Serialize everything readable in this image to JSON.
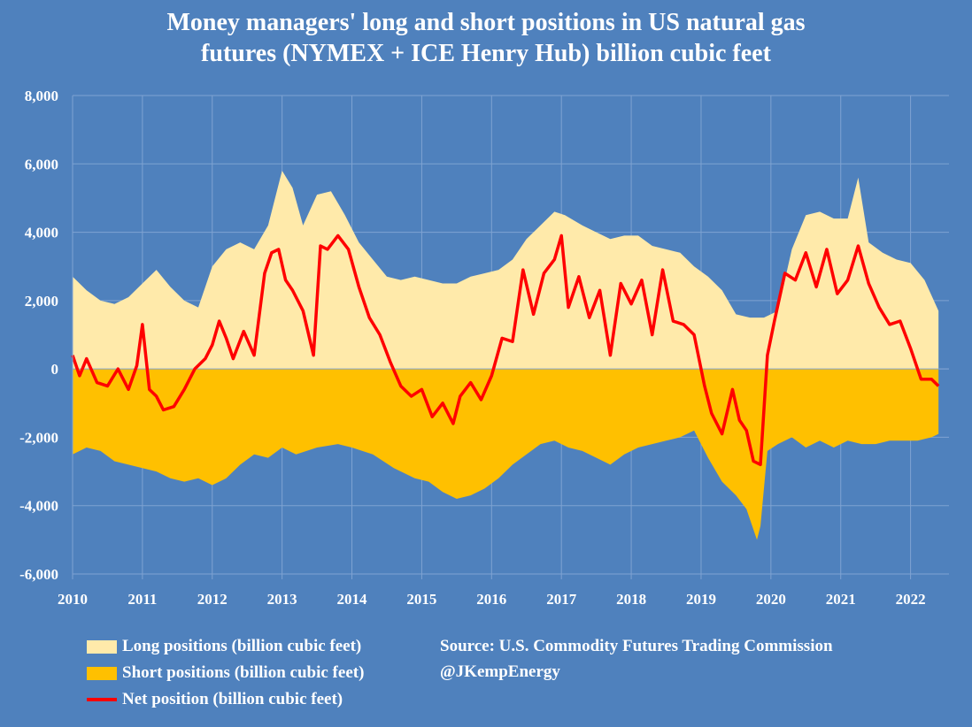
{
  "title_line1": "Money managers' long and short positions in US natural gas",
  "title_line2": "futures (NYMEX + ICE Henry Hub) billion cubic feet",
  "legend": {
    "long": "Long positions (billion cubic feet)",
    "short": "Short positions (billion cubic feet)",
    "net": "Net position (billion cubic feet)"
  },
  "source": {
    "line1": "Source: U.S. Commodity Futures Trading Commission",
    "line2": "@JKempEnergy"
  },
  "colors": {
    "background": "#4f81bd",
    "long": "#ffeaaa",
    "short": "#ffc000",
    "net": "#ff0000",
    "grid": "#7fa3d2"
  },
  "chart_data": {
    "type": "area",
    "title": "Money managers' long and short positions in US natural gas futures (NYMEX + ICE Henry Hub) billion cubic feet",
    "xlabel": "",
    "ylabel": "billion cubic feet",
    "xlim": [
      2010,
      2022.55
    ],
    "ylim": [
      -6000,
      8000
    ],
    "yticks": [
      -6000,
      -4000,
      -2000,
      0,
      2000,
      4000,
      6000,
      8000
    ],
    "ytick_labels": [
      "-6,000",
      "-4,000",
      "-2,000",
      "0",
      "2,000",
      "4,000",
      "6,000",
      "8,000"
    ],
    "xticks": [
      2010,
      2011,
      2012,
      2013,
      2014,
      2015,
      2016,
      2017,
      2018,
      2019,
      2020,
      2021,
      2022
    ],
    "xtick_labels": [
      "2010",
      "2011",
      "2012",
      "2013",
      "2014",
      "2015",
      "2016",
      "2017",
      "2018",
      "2019",
      "2020",
      "2021",
      "2022"
    ],
    "grid": true,
    "series": [
      {
        "name": "Long positions (billion cubic feet)",
        "type": "area",
        "x": [
          2010.0,
          2010.2,
          2010.4,
          2010.6,
          2010.8,
          2011.0,
          2011.2,
          2011.4,
          2011.6,
          2011.8,
          2012.0,
          2012.2,
          2012.4,
          2012.6,
          2012.8,
          2013.0,
          2013.15,
          2013.3,
          2013.5,
          2013.7,
          2013.9,
          2014.1,
          2014.3,
          2014.5,
          2014.7,
          2014.9,
          2015.1,
          2015.3,
          2015.5,
          2015.7,
          2015.9,
          2016.1,
          2016.3,
          2016.5,
          2016.7,
          2016.9,
          2017.05,
          2017.3,
          2017.5,
          2017.7,
          2017.9,
          2018.1,
          2018.3,
          2018.5,
          2018.7,
          2018.9,
          2019.1,
          2019.3,
          2019.5,
          2019.7,
          2019.9,
          2020.1,
          2020.3,
          2020.5,
          2020.7,
          2020.9,
          2021.1,
          2021.25,
          2021.4,
          2021.6,
          2021.8,
          2022.0,
          2022.2,
          2022.4
        ],
        "values": [
          2700,
          2300,
          2000,
          1900,
          2100,
          2500,
          2900,
          2400,
          2000,
          1800,
          3000,
          3500,
          3700,
          3500,
          4200,
          5800,
          5300,
          4200,
          5100,
          5200,
          4500,
          3700,
          3200,
          2700,
          2600,
          2700,
          2600,
          2500,
          2500,
          2700,
          2800,
          2900,
          3200,
          3800,
          4200,
          4600,
          4500,
          4200,
          4000,
          3800,
          3900,
          3900,
          3600,
          3500,
          3400,
          3000,
          2700,
          2300,
          1600,
          1500,
          1500,
          1700,
          3500,
          4500,
          4600,
          4400,
          4400,
          5600,
          3700,
          3400,
          3200,
          3100,
          2600,
          1700
        ]
      },
      {
        "name": "Short positions (billion cubic feet)",
        "type": "area",
        "x": [
          2010.0,
          2010.2,
          2010.4,
          2010.6,
          2010.8,
          2011.0,
          2011.2,
          2011.4,
          2011.6,
          2011.8,
          2012.0,
          2012.2,
          2012.4,
          2012.6,
          2012.8,
          2013.0,
          2013.2,
          2013.5,
          2013.8,
          2014.0,
          2014.3,
          2014.6,
          2014.9,
          2015.1,
          2015.3,
          2015.5,
          2015.7,
          2015.9,
          2016.1,
          2016.3,
          2016.5,
          2016.7,
          2016.9,
          2017.1,
          2017.3,
          2017.5,
          2017.7,
          2017.9,
          2018.1,
          2018.3,
          2018.5,
          2018.7,
          2018.9,
          2019.1,
          2019.3,
          2019.5,
          2019.65,
          2019.8,
          2019.85,
          2019.95,
          2020.1,
          2020.3,
          2020.5,
          2020.7,
          2020.9,
          2021.1,
          2021.3,
          2021.5,
          2021.7,
          2021.9,
          2022.1,
          2022.3,
          2022.4
        ],
        "values": [
          -2500,
          -2300,
          -2400,
          -2700,
          -2800,
          -2900,
          -3000,
          -3200,
          -3300,
          -3200,
          -3400,
          -3200,
          -2800,
          -2500,
          -2600,
          -2300,
          -2500,
          -2300,
          -2200,
          -2300,
          -2500,
          -2900,
          -3200,
          -3300,
          -3600,
          -3800,
          -3700,
          -3500,
          -3200,
          -2800,
          -2500,
          -2200,
          -2100,
          -2300,
          -2400,
          -2600,
          -2800,
          -2500,
          -2300,
          -2200,
          -2100,
          -2000,
          -1800,
          -2600,
          -3300,
          -3700,
          -4100,
          -5000,
          -4600,
          -2400,
          -2200,
          -2000,
          -2300,
          -2100,
          -2300,
          -2100,
          -2200,
          -2200,
          -2100,
          -2100,
          -2100,
          -2000,
          -1900
        ]
      },
      {
        "name": "Net position (billion cubic feet)",
        "type": "line",
        "x": [
          2010.0,
          2010.1,
          2010.2,
          2010.35,
          2010.5,
          2010.65,
          2010.8,
          2010.92,
          2011.0,
          2011.1,
          2011.2,
          2011.3,
          2011.45,
          2011.6,
          2011.75,
          2011.9,
          2012.0,
          2012.1,
          2012.2,
          2012.3,
          2012.45,
          2012.6,
          2012.75,
          2012.85,
          2012.95,
          2013.05,
          2013.15,
          2013.3,
          2013.45,
          2013.55,
          2013.65,
          2013.8,
          2013.95,
          2014.1,
          2014.25,
          2014.4,
          2014.55,
          2014.7,
          2014.85,
          2015.0,
          2015.15,
          2015.3,
          2015.45,
          2015.55,
          2015.7,
          2015.85,
          2016.0,
          2016.15,
          2016.3,
          2016.45,
          2016.6,
          2016.75,
          2016.9,
          2017.0,
          2017.1,
          2017.25,
          2017.4,
          2017.55,
          2017.7,
          2017.85,
          2018.0,
          2018.15,
          2018.3,
          2018.45,
          2018.6,
          2018.75,
          2018.9,
          2019.05,
          2019.15,
          2019.3,
          2019.45,
          2019.55,
          2019.65,
          2019.75,
          2019.85,
          2019.95,
          2020.05,
          2020.2,
          2020.35,
          2020.5,
          2020.65,
          2020.8,
          2020.95,
          2021.1,
          2021.25,
          2021.4,
          2021.55,
          2021.7,
          2021.85,
          2022.0,
          2022.15,
          2022.3,
          2022.4
        ],
        "values": [
          400,
          -200,
          300,
          -400,
          -500,
          0,
          -600,
          100,
          1300,
          -600,
          -800,
          -1200,
          -1100,
          -600,
          0,
          300,
          700,
          1400,
          900,
          300,
          1100,
          400,
          2800,
          3400,
          3500,
          2600,
          2300,
          1700,
          400,
          3600,
          3500,
          3900,
          3500,
          2400,
          1500,
          1000,
          200,
          -500,
          -800,
          -600,
          -1400,
          -1000,
          -1600,
          -800,
          -400,
          -900,
          -200,
          900,
          800,
          2900,
          1600,
          2800,
          3200,
          3900,
          1800,
          2700,
          1500,
          2300,
          400,
          2500,
          1900,
          2600,
          1000,
          2900,
          1400,
          1300,
          1000,
          -500,
          -1300,
          -1900,
          -600,
          -1500,
          -1800,
          -2700,
          -2800,
          400,
          1400,
          2800,
          2600,
          3400,
          2400,
          3500,
          2200,
          2600,
          3600,
          2500,
          1800,
          1300,
          1400,
          600,
          -300,
          -300,
          -500
        ]
      }
    ]
  }
}
